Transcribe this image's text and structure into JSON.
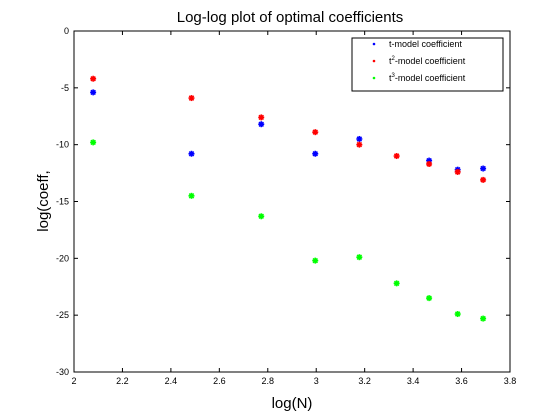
{
  "chart_data": {
    "type": "scatter",
    "title": "Log-log plot of optimal coefficients",
    "xlabel": "log(N)",
    "ylabel": "log(coeff,",
    "xlim": [
      2,
      3.8
    ],
    "ylim": [
      -30,
      0
    ],
    "xticks": [
      "2",
      "2.2",
      "2.4",
      "2.6",
      "2.8",
      "3",
      "3.2",
      "3.4",
      "3.6",
      "3.8"
    ],
    "yticks": [
      "0",
      "-5",
      "-10",
      "-15",
      "-20",
      "-25",
      "-30"
    ],
    "grid": false,
    "legend_position": "top-right",
    "series": [
      {
        "name": "t-model coefficient",
        "legend_prefix": "t",
        "legend_sup": "",
        "legend_suffix": "-model coefficient",
        "color": "#0000ff",
        "x": [
          2.079,
          2.485,
          2.773,
          2.996,
          3.178,
          3.466,
          3.584,
          3.689
        ],
        "y": [
          -5.4,
          -10.8,
          -8.2,
          -10.8,
          -9.5,
          -11.4,
          -12.2,
          -12.1
        ]
      },
      {
        "name": "t2-model coefficient",
        "legend_prefix": "t",
        "legend_sup": "2",
        "legend_suffix": "-model coefficient",
        "color": "#ff0000",
        "x": [
          2.079,
          2.485,
          2.773,
          2.996,
          3.178,
          3.332,
          3.466,
          3.584,
          3.689
        ],
        "y": [
          -4.2,
          -5.9,
          -7.6,
          -8.9,
          -10.0,
          -11.0,
          -11.7,
          -12.4,
          -13.1
        ]
      },
      {
        "name": "t3-model coefficient",
        "legend_prefix": "t",
        "legend_sup": "3",
        "legend_suffix": "-model coefficient",
        "color": "#00ff00",
        "x": [
          2.079,
          2.485,
          2.773,
          2.996,
          3.178,
          3.332,
          3.466,
          3.584,
          3.689
        ],
        "y": [
          -9.8,
          -14.5,
          -16.3,
          -20.2,
          -19.9,
          -22.2,
          -23.5,
          -24.9,
          -25.3
        ]
      }
    ]
  }
}
